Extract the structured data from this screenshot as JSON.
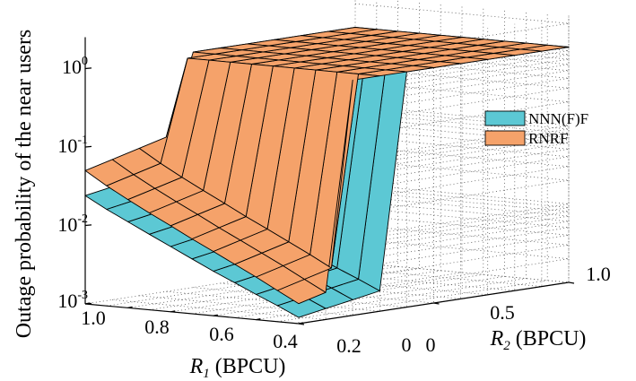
{
  "chart_data": {
    "type": "surface3d",
    "title": "",
    "xlabel": {
      "main": "R",
      "sub": "1",
      "unit": " (BPCU)"
    },
    "ylabel": {
      "main": "R",
      "sub": "2",
      "unit": " (BPCU)"
    },
    "zlabel": "Outage probability of the near users",
    "x_ticks": [
      "1.0",
      "0.8",
      "0.6",
      "0.4",
      "0.2",
      "0"
    ],
    "y_ticks": [
      "0",
      "0.5",
      "1.0"
    ],
    "z_ticks": [
      {
        "base": "10",
        "exp": "0"
      },
      {
        "base": "10",
        "exp": "-1"
      },
      {
        "base": "10",
        "exp": "-2"
      },
      {
        "base": "10",
        "exp": "-3"
      }
    ],
    "xlim": [
      0,
      1
    ],
    "ylim": [
      0,
      1
    ],
    "zlim_log10": [
      -3,
      0.4
    ],
    "zscale": "log",
    "grid": true,
    "legend_position": "right",
    "R1": [
      0.0,
      0.1,
      0.2,
      0.3,
      0.4,
      0.5,
      0.6,
      0.7,
      0.8,
      0.9,
      1.0
    ],
    "R2": [
      0.0,
      0.1,
      0.2,
      0.3,
      0.4,
      0.5,
      0.6,
      0.7,
      0.8,
      0.9,
      1.0
    ],
    "series": [
      {
        "name": "NNN(F)F",
        "color": "#5cc8d4",
        "threshold": 0.32,
        "outage_at_R2_0": [
          0.0012,
          0.0016,
          0.0021,
          0.0028,
          0.0037,
          0.005,
          0.0068,
          0.0092,
          0.0125,
          0.017,
          0.024
        ],
        "outage_after_threshold": 1.0
      },
      {
        "name": "RNRF",
        "color": "#f5a26a",
        "threshold_at_R1_1": 0.3,
        "threshold_slope_per_R1": 0.1,
        "outage_at_R2_0": [
          0.0018,
          0.0025,
          0.0035,
          0.0048,
          0.0066,
          0.009,
          0.0125,
          0.0172,
          0.024,
          0.034,
          0.05
        ],
        "outage_after_threshold": 1.0
      }
    ]
  }
}
